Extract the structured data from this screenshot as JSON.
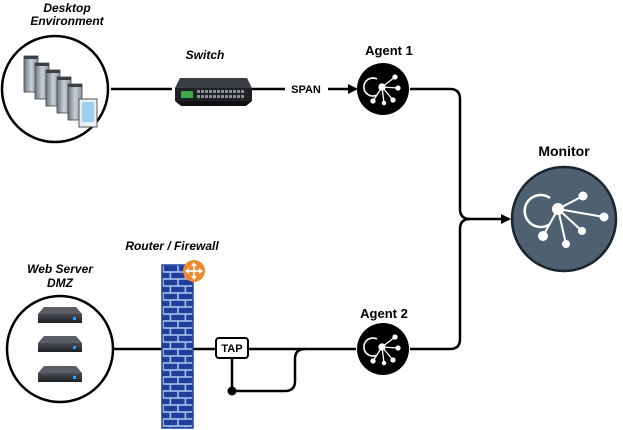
{
  "diagram": {
    "nodes": {
      "desktop": {
        "label_line1": "Desktop",
        "label_line2": "Environment",
        "icon": "desktop-computers-icon"
      },
      "switch": {
        "label": "Switch",
        "icon": "network-switch-icon"
      },
      "agent1": {
        "label": "Agent 1",
        "icon": "network-sensor-icon"
      },
      "agent2": {
        "label": "Agent 2",
        "icon": "network-sensor-icon"
      },
      "monitor": {
        "label": "Monitor",
        "icon": "network-sensor-icon"
      },
      "router": {
        "label": "Router / Firewall",
        "icon": "firewall-brick-wall-icon",
        "badge_icon": "router-arrows-icon"
      },
      "webserver": {
        "label_line1": "Web Server",
        "label_line2": "DMZ",
        "icon": "server-appliance-icon"
      },
      "tap": {
        "label": "TAP"
      }
    },
    "edges": {
      "span_label": "SPAN"
    }
  },
  "colors": {
    "line": "#000000",
    "monitor_fill": "#4f6070",
    "firewall_blue": "#1f3f9a",
    "firewall_mortar": "#a9c3ef",
    "router_badge": "#f0882e",
    "switch_led": "#3ea84c"
  }
}
